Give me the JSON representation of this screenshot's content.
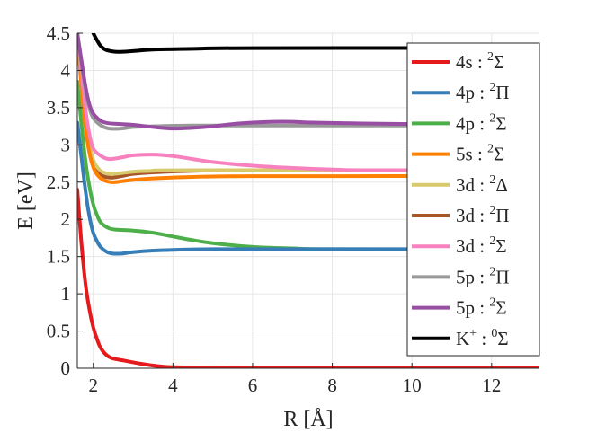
{
  "chart_data": {
    "type": "line",
    "title": "",
    "xlabel": "R [Å]",
    "ylabel": "E [eV]",
    "xlim": [
      1.6,
      13.2
    ],
    "ylim": [
      0,
      4.5
    ],
    "grid": true,
    "legend_position": "top-right",
    "x_ticks": [
      2,
      4,
      6,
      8,
      10,
      12
    ],
    "x_tick_labels": [
      "2",
      "4",
      "6",
      "8",
      "10",
      "12"
    ],
    "y_ticks": [
      0,
      0.5,
      1,
      1.5,
      2,
      2.5,
      3,
      3.5,
      4,
      4.5
    ],
    "y_tick_labels": [
      "0",
      "0.5",
      "1",
      "1.5",
      "2",
      "2.5",
      "3",
      "3.5",
      "4",
      "4.5"
    ],
    "series": [
      {
        "orbital": "4s",
        "sup": "2",
        "term": "Σ",
        "color": "#e41a1c",
        "points": [
          [
            1.6,
            2.4
          ],
          [
            1.7,
            1.7
          ],
          [
            1.8,
            1.15
          ],
          [
            1.9,
            0.8
          ],
          [
            2.0,
            0.55
          ],
          [
            2.1,
            0.38
          ],
          [
            2.2,
            0.26
          ],
          [
            2.35,
            0.17
          ],
          [
            2.5,
            0.13
          ],
          [
            2.8,
            0.1
          ],
          [
            3.2,
            0.06
          ],
          [
            3.6,
            0.03
          ],
          [
            4.0,
            0.015
          ],
          [
            5.0,
            0.005
          ],
          [
            6.0,
            0.0
          ],
          [
            13.2,
            0.0
          ]
        ]
      },
      {
        "orbital": "4p",
        "sup": "2",
        "term": "Π",
        "color": "#377eb8",
        "points": [
          [
            1.6,
            3.3
          ],
          [
            1.7,
            2.85
          ],
          [
            1.8,
            2.4
          ],
          [
            1.9,
            2.05
          ],
          [
            2.0,
            1.82
          ],
          [
            2.1,
            1.7
          ],
          [
            2.2,
            1.62
          ],
          [
            2.35,
            1.56
          ],
          [
            2.5,
            1.54
          ],
          [
            2.7,
            1.54
          ],
          [
            3.0,
            1.56
          ],
          [
            3.5,
            1.58
          ],
          [
            4.0,
            1.59
          ],
          [
            5.0,
            1.6
          ],
          [
            6.0,
            1.6
          ],
          [
            13.2,
            1.6
          ]
        ]
      },
      {
        "orbital": "4p",
        "sup": "2",
        "term": "Σ",
        "color": "#4daf4a",
        "points": [
          [
            1.6,
            3.85
          ],
          [
            1.7,
            3.3
          ],
          [
            1.8,
            2.8
          ],
          [
            1.9,
            2.45
          ],
          [
            2.0,
            2.2
          ],
          [
            2.1,
            2.05
          ],
          [
            2.2,
            1.95
          ],
          [
            2.4,
            1.88
          ],
          [
            2.6,
            1.86
          ],
          [
            3.0,
            1.85
          ],
          [
            3.5,
            1.82
          ],
          [
            4.0,
            1.77
          ],
          [
            4.5,
            1.72
          ],
          [
            5.0,
            1.68
          ],
          [
            6.0,
            1.63
          ],
          [
            7.0,
            1.61
          ],
          [
            8.0,
            1.6
          ],
          [
            13.2,
            1.6
          ]
        ]
      },
      {
        "orbital": "5s",
        "sup": "2",
        "term": "Σ",
        "color": "#ff7f00",
        "points": [
          [
            1.6,
            4.5
          ],
          [
            1.7,
            3.8
          ],
          [
            1.8,
            3.25
          ],
          [
            1.9,
            2.9
          ],
          [
            2.0,
            2.7
          ],
          [
            2.1,
            2.6
          ],
          [
            2.25,
            2.53
          ],
          [
            2.45,
            2.5
          ],
          [
            2.7,
            2.51
          ],
          [
            3.0,
            2.53
          ],
          [
            3.5,
            2.55
          ],
          [
            4.5,
            2.57
          ],
          [
            6.0,
            2.58
          ],
          [
            13.2,
            2.58
          ]
        ]
      },
      {
        "orbital": "3d",
        "sup": "2",
        "term": "Δ",
        "color": "#d8c96a",
        "points": [
          [
            1.6,
            4.5
          ],
          [
            1.7,
            3.9
          ],
          [
            1.8,
            3.35
          ],
          [
            1.9,
            3.0
          ],
          [
            2.0,
            2.8
          ],
          [
            2.1,
            2.7
          ],
          [
            2.25,
            2.63
          ],
          [
            2.45,
            2.61
          ],
          [
            2.7,
            2.62
          ],
          [
            3.0,
            2.64
          ],
          [
            3.5,
            2.65
          ],
          [
            4.5,
            2.66
          ],
          [
            13.2,
            2.66
          ]
        ]
      },
      {
        "orbital": "3d",
        "sup": "2",
        "term": "Π",
        "color": "#a65628",
        "points": [
          [
            1.6,
            4.5
          ],
          [
            1.7,
            3.85
          ],
          [
            1.8,
            3.3
          ],
          [
            1.9,
            2.95
          ],
          [
            2.0,
            2.74
          ],
          [
            2.1,
            2.64
          ],
          [
            2.25,
            2.58
          ],
          [
            2.45,
            2.56
          ],
          [
            2.7,
            2.58
          ],
          [
            3.0,
            2.61
          ],
          [
            3.5,
            2.63
          ],
          [
            4.5,
            2.65
          ],
          [
            6.0,
            2.66
          ],
          [
            13.2,
            2.66
          ]
        ]
      },
      {
        "orbital": "3d",
        "sup": "2",
        "term": "Σ",
        "color": "#f781bf",
        "points": [
          [
            1.6,
            4.5
          ],
          [
            1.7,
            4.0
          ],
          [
            1.8,
            3.5
          ],
          [
            1.9,
            3.15
          ],
          [
            2.0,
            2.95
          ],
          [
            2.2,
            2.85
          ],
          [
            2.4,
            2.81
          ],
          [
            2.7,
            2.83
          ],
          [
            3.0,
            2.86
          ],
          [
            3.5,
            2.87
          ],
          [
            4.0,
            2.85
          ],
          [
            4.5,
            2.81
          ],
          [
            5.0,
            2.77
          ],
          [
            6.0,
            2.72
          ],
          [
            7.0,
            2.69
          ],
          [
            8.0,
            2.67
          ],
          [
            9.0,
            2.66
          ],
          [
            13.2,
            2.66
          ]
        ]
      },
      {
        "orbital": "5p",
        "sup": "2",
        "term": "Π",
        "color": "#999999",
        "points": [
          [
            1.6,
            4.5
          ],
          [
            1.7,
            4.1
          ],
          [
            1.8,
            3.75
          ],
          [
            1.9,
            3.5
          ],
          [
            2.0,
            3.36
          ],
          [
            2.2,
            3.26
          ],
          [
            2.4,
            3.22
          ],
          [
            2.7,
            3.22
          ],
          [
            3.0,
            3.24
          ],
          [
            3.5,
            3.25
          ],
          [
            4.5,
            3.26
          ],
          [
            6.0,
            3.26
          ],
          [
            13.2,
            3.26
          ]
        ]
      },
      {
        "orbital": "5p",
        "sup": "2",
        "term": "Σ",
        "color": "#984ea3",
        "points": [
          [
            1.6,
            4.5
          ],
          [
            1.7,
            4.15
          ],
          [
            1.8,
            3.8
          ],
          [
            1.9,
            3.55
          ],
          [
            2.0,
            3.42
          ],
          [
            2.2,
            3.32
          ],
          [
            2.4,
            3.29
          ],
          [
            2.7,
            3.28
          ],
          [
            3.0,
            3.27
          ],
          [
            3.5,
            3.24
          ],
          [
            4.0,
            3.22
          ],
          [
            4.5,
            3.23
          ],
          [
            5.0,
            3.25
          ],
          [
            5.5,
            3.28
          ],
          [
            6.0,
            3.3
          ],
          [
            6.5,
            3.31
          ],
          [
            7.0,
            3.31
          ],
          [
            7.5,
            3.3
          ],
          [
            8.5,
            3.29
          ],
          [
            10.0,
            3.28
          ],
          [
            13.2,
            3.27
          ]
        ]
      },
      {
        "orbital": "K",
        "orbital_sup": "+",
        "sup": "0",
        "term": "Σ",
        "color": "#000000",
        "points": [
          [
            2.0,
            4.5
          ],
          [
            2.1,
            4.4
          ],
          [
            2.2,
            4.32
          ],
          [
            2.35,
            4.27
          ],
          [
            2.6,
            4.25
          ],
          [
            3.0,
            4.26
          ],
          [
            3.5,
            4.28
          ],
          [
            4.5,
            4.29
          ],
          [
            6.0,
            4.3
          ],
          [
            13.2,
            4.3
          ]
        ]
      }
    ]
  }
}
